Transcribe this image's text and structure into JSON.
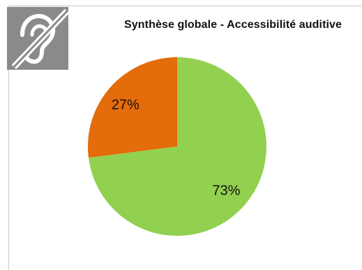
{
  "chart_data": {
    "type": "pie",
    "title": "Synthèse globale - Accessibilité auditive",
    "slices": [
      {
        "value": 73,
        "label": "73%",
        "color": "#92d050"
      },
      {
        "value": 27,
        "label": "27%",
        "color": "#e46c0a"
      }
    ],
    "start": "12 o'clock",
    "direction": "clockwise",
    "legend": "none"
  },
  "badge": {
    "icon": "hearing-impairment-icon",
    "background": "#8a8a8a",
    "foreground": "#ffffff"
  }
}
